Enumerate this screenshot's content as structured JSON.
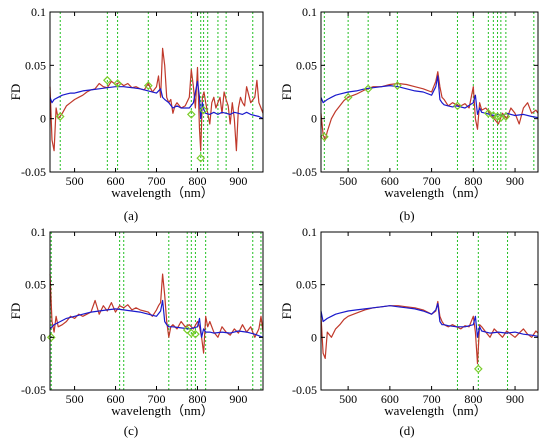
{
  "chart_data": [
    {
      "type": "line",
      "panel_label": "(a)",
      "xlabel": "wavelength（nm）",
      "ylabel": "FD",
      "xlim": [
        440,
        960
      ],
      "ylim": [
        -0.05,
        0.1
      ],
      "xticks": [
        "500",
        "600",
        "700",
        "800",
        "900"
      ],
      "yticks": [
        "-0.05",
        "0",
        "0.05",
        "0.1"
      ],
      "grid": false,
      "colors": {
        "red": "#c0392b",
        "blue": "#1a1acd",
        "green_line": "#22c022",
        "marker": "#7ccd2c"
      },
      "vlines": [
        465,
        580,
        605,
        680,
        785,
        808,
        815,
        825,
        850,
        870,
        935
      ],
      "markers": [
        [
          465,
          0.002
        ],
        [
          580,
          0.036
        ],
        [
          605,
          0.033
        ],
        [
          680,
          0.031
        ],
        [
          785,
          0.004
        ],
        [
          808,
          -0.037
        ],
        [
          815,
          0.008
        ]
      ],
      "series": [
        {
          "color": "red",
          "x": [
            440,
            445,
            450,
            455,
            460,
            470,
            480,
            490,
            500,
            510,
            520,
            530,
            540,
            550,
            560,
            570,
            580,
            590,
            600,
            610,
            620,
            630,
            640,
            650,
            660,
            670,
            680,
            690,
            700,
            705,
            710,
            715,
            720,
            725,
            730,
            735,
            740,
            745,
            750,
            760,
            770,
            780,
            785,
            790,
            795,
            800,
            805,
            808,
            812,
            816,
            820,
            825,
            830,
            835,
            840,
            845,
            850,
            855,
            860,
            865,
            870,
            875,
            880,
            885,
            890,
            895,
            900,
            905,
            910,
            915,
            920,
            930,
            940,
            945,
            950,
            955,
            960
          ],
          "y": [
            0.03,
            -0.02,
            -0.03,
            0.01,
            0.0,
            0.005,
            0.012,
            0.015,
            0.018,
            0.02,
            0.022,
            0.025,
            0.027,
            0.028,
            0.033,
            0.03,
            0.029,
            0.035,
            0.032,
            0.034,
            0.031,
            0.033,
            0.029,
            0.03,
            0.028,
            0.027,
            0.033,
            0.025,
            0.03,
            0.04,
            0.02,
            0.066,
            0.05,
            0.02,
            0.015,
            0.018,
            0.005,
            0.012,
            0.015,
            0.01,
            0.012,
            0.02,
            0.046,
            0.03,
            0.01,
            0.048,
            -0.01,
            -0.03,
            0.02,
            0.025,
            0.015,
            0.005,
            -0.005,
            0.015,
            0.02,
            0.01,
            0.015,
            0.02,
            0.005,
            0.025,
            0.018,
            0.012,
            -0.005,
            0.015,
            0.0,
            -0.03,
            0.01,
            0.02,
            0.015,
            0.012,
            0.03,
            0.015,
            0.02,
            0.036,
            0.015,
            0.01,
            0.005
          ]
        },
        {
          "color": "blue",
          "x": [
            440,
            445,
            450,
            460,
            470,
            480,
            490,
            500,
            510,
            520,
            540,
            560,
            580,
            600,
            620,
            640,
            660,
            680,
            700,
            710,
            715,
            720,
            730,
            740,
            750,
            760,
            780,
            790,
            800,
            805,
            808,
            812,
            816,
            820,
            830,
            840,
            850,
            860,
            870,
            880,
            890,
            900,
            910,
            920,
            930,
            940,
            950,
            960
          ],
          "y": [
            0.02,
            0.015,
            0.018,
            0.02,
            0.022,
            0.023,
            0.024,
            0.024,
            0.025,
            0.026,
            0.027,
            0.028,
            0.029,
            0.03,
            0.03,
            0.029,
            0.028,
            0.026,
            0.024,
            0.028,
            0.02,
            0.018,
            0.015,
            0.01,
            0.012,
            0.01,
            0.01,
            0.015,
            0.035,
            0.02,
            0.0,
            0.015,
            0.008,
            0.005,
            0.004,
            0.006,
            0.004,
            0.006,
            0.005,
            0.004,
            0.006,
            0.005,
            0.004,
            0.006,
            0.004,
            0.003,
            0.002,
            0.0
          ]
        }
      ]
    },
    {
      "type": "line",
      "panel_label": "(b)",
      "xlabel": "wavelength（nm）",
      "ylabel": "FD",
      "xlim": [
        435,
        955
      ],
      "ylim": [
        -0.05,
        0.1
      ],
      "xticks": [
        "500",
        "600",
        "700",
        "800",
        "900"
      ],
      "yticks": [
        "-0.05",
        "0",
        "0.05",
        "0.1"
      ],
      "grid": false,
      "colors": {
        "red": "#c0392b",
        "blue": "#1a1acd",
        "green_line": "#22c022",
        "marker": "#7ccd2c"
      },
      "vlines": [
        443,
        500,
        548,
        618,
        762,
        800,
        836,
        848,
        858,
        866,
        878,
        945
      ],
      "markers": [
        [
          443,
          -0.017
        ],
        [
          500,
          0.02
        ],
        [
          548,
          0.028
        ],
        [
          618,
          0.031
        ],
        [
          762,
          0.012
        ],
        [
          836,
          0.005
        ],
        [
          848,
          0.003
        ],
        [
          858,
          0.002
        ],
        [
          866,
          0.001
        ],
        [
          878,
          0.002
        ]
      ],
      "series": [
        {
          "color": "red",
          "x": [
            435,
            440,
            445,
            450,
            460,
            470,
            480,
            490,
            500,
            520,
            540,
            560,
            580,
            600,
            620,
            640,
            660,
            680,
            700,
            710,
            715,
            720,
            725,
            730,
            740,
            750,
            760,
            770,
            780,
            790,
            800,
            805,
            810,
            815,
            820,
            830,
            840,
            850,
            860,
            870,
            880,
            890,
            900,
            910,
            920,
            930,
            940,
            950,
            955
          ],
          "y": [
            0.005,
            -0.015,
            -0.02,
            -0.012,
            0.0,
            0.007,
            0.012,
            0.017,
            0.02,
            0.023,
            0.027,
            0.03,
            0.03,
            0.032,
            0.033,
            0.032,
            0.03,
            0.028,
            0.025,
            0.035,
            0.044,
            0.03,
            0.02,
            0.018,
            0.012,
            0.015,
            0.013,
            0.012,
            0.014,
            0.01,
            0.03,
            0.0,
            -0.01,
            0.015,
            0.008,
            0.01,
            0.005,
            0.0,
            -0.005,
            0.005,
            0.0,
            0.01,
            0.005,
            -0.005,
            0.01,
            0.015,
            0.005,
            0.008,
            0.005
          ]
        },
        {
          "color": "blue",
          "x": [
            435,
            440,
            450,
            460,
            470,
            480,
            500,
            520,
            540,
            560,
            580,
            600,
            620,
            640,
            660,
            680,
            700,
            710,
            715,
            720,
            725,
            730,
            740,
            750,
            760,
            780,
            800,
            805,
            810,
            815,
            820,
            830,
            840,
            850,
            860,
            870,
            880,
            890,
            900,
            920,
            940,
            955
          ],
          "y": [
            0.02,
            0.015,
            0.018,
            0.02,
            0.022,
            0.023,
            0.025,
            0.026,
            0.028,
            0.029,
            0.03,
            0.031,
            0.03,
            0.028,
            0.026,
            0.025,
            0.022,
            0.03,
            0.04,
            0.018,
            0.015,
            0.013,
            0.012,
            0.011,
            0.012,
            0.01,
            0.015,
            0.022,
            0.004,
            0.01,
            0.006,
            0.005,
            0.004,
            0.003,
            0.004,
            0.003,
            0.005,
            0.004,
            0.003,
            0.004,
            0.002,
            0.001
          ]
        }
      ]
    },
    {
      "type": "line",
      "panel_label": "(c)",
      "xlabel": "wavelength（nm）",
      "ylabel": "FD",
      "xlim": [
        440,
        960
      ],
      "ylim": [
        -0.05,
        0.1
      ],
      "xticks": [
        "500",
        "600",
        "700",
        "800",
        "900"
      ],
      "yticks": [
        "-0.05",
        "0",
        "0.05",
        "0.1"
      ],
      "grid": false,
      "colors": {
        "red": "#c0392b",
        "blue": "#1a1acd",
        "green_line": "#22c022",
        "marker": "#7ccd2c"
      },
      "vlines": [
        443,
        610,
        620,
        730,
        775,
        785,
        795,
        820,
        935,
        955
      ],
      "markers": [
        [
          443,
          0.0
        ],
        [
          775,
          0.007
        ],
        [
          785,
          0.004
        ],
        [
          795,
          0.003
        ]
      ],
      "series": [
        {
          "color": "red",
          "x": [
            440,
            445,
            450,
            455,
            460,
            470,
            480,
            490,
            500,
            510,
            520,
            530,
            540,
            550,
            560,
            570,
            580,
            590,
            600,
            610,
            620,
            630,
            640,
            650,
            660,
            670,
            680,
            690,
            700,
            705,
            710,
            715,
            720,
            725,
            730,
            735,
            740,
            750,
            760,
            770,
            780,
            790,
            800,
            805,
            810,
            815,
            820,
            825,
            830,
            840,
            850,
            860,
            870,
            880,
            890,
            900,
            910,
            920,
            930,
            940,
            950,
            955,
            960
          ],
          "y": [
            0.06,
            0.015,
            0.005,
            0.02,
            0.01,
            0.012,
            0.015,
            0.02,
            0.018,
            0.022,
            0.02,
            0.022,
            0.024,
            0.035,
            0.022,
            0.03,
            0.025,
            0.033,
            0.024,
            0.03,
            0.028,
            0.031,
            0.026,
            0.028,
            0.026,
            0.025,
            0.024,
            0.02,
            0.026,
            0.03,
            0.033,
            0.06,
            0.04,
            0.015,
            0.0,
            0.01,
            0.012,
            0.008,
            0.015,
            0.01,
            0.012,
            0.008,
            0.015,
            0.01,
            0.0,
            -0.015,
            0.02,
            0.01,
            0.015,
            0.005,
            0.0,
            0.01,
            0.005,
            0.002,
            0.008,
            0.004,
            0.012,
            0.005,
            0.01,
            0.0,
            0.008,
            0.02,
            0.005
          ]
        },
        {
          "color": "blue",
          "x": [
            440,
            445,
            450,
            460,
            470,
            480,
            500,
            520,
            540,
            560,
            580,
            600,
            620,
            640,
            660,
            680,
            700,
            710,
            715,
            720,
            725,
            730,
            740,
            760,
            780,
            800,
            805,
            810,
            815,
            820,
            830,
            840,
            860,
            880,
            900,
            920,
            940,
            960
          ],
          "y": [
            0.008,
            0.01,
            0.012,
            0.014,
            0.016,
            0.018,
            0.02,
            0.022,
            0.024,
            0.025,
            0.026,
            0.027,
            0.026,
            0.025,
            0.024,
            0.022,
            0.02,
            0.025,
            0.035,
            0.015,
            0.012,
            0.01,
            0.01,
            0.009,
            0.008,
            0.01,
            0.018,
            0.0,
            0.008,
            0.005,
            0.005,
            0.004,
            0.005,
            0.004,
            0.006,
            0.005,
            0.003,
            0.0
          ]
        }
      ]
    },
    {
      "type": "line",
      "panel_label": "(d)",
      "xlabel": "wavelength（nm）",
      "ylabel": "FD",
      "xlim": [
        435,
        955
      ],
      "ylim": [
        -0.05,
        0.1
      ],
      "xticks": [
        "500",
        "600",
        "700",
        "800",
        "900"
      ],
      "yticks": [
        "-0.05",
        "0",
        "0.05",
        "0.1"
      ],
      "grid": false,
      "colors": {
        "red": "#c0392b",
        "blue": "#1a1acd",
        "green_line": "#22c022",
        "marker": "#7ccd2c"
      },
      "vlines": [
        762,
        812,
        882
      ],
      "markers": [
        [
          812,
          -0.03
        ]
      ],
      "series": [
        {
          "color": "red",
          "x": [
            435,
            440,
            445,
            450,
            460,
            470,
            480,
            490,
            500,
            520,
            540,
            560,
            580,
            600,
            620,
            640,
            660,
            680,
            700,
            710,
            715,
            720,
            725,
            730,
            740,
            750,
            760,
            770,
            780,
            790,
            800,
            805,
            810,
            815,
            820,
            830,
            840,
            850,
            860,
            870,
            880,
            890,
            900,
            910,
            920,
            930,
            940,
            950,
            955
          ],
          "y": [
            0.02,
            -0.015,
            -0.02,
            0.005,
            0.0,
            0.008,
            0.012,
            0.017,
            0.02,
            0.023,
            0.026,
            0.028,
            0.029,
            0.03,
            0.03,
            0.029,
            0.028,
            0.026,
            0.022,
            0.025,
            0.034,
            0.02,
            0.015,
            0.012,
            0.01,
            0.012,
            0.01,
            0.008,
            0.011,
            0.01,
            0.02,
            0.005,
            -0.025,
            0.012,
            0.01,
            0.005,
            0.0,
            0.008,
            0.004,
            0.0,
            0.006,
            0.003,
            0.0,
            0.004,
            0.008,
            0.003,
            0.0,
            0.006,
            0.004
          ]
        },
        {
          "color": "blue",
          "x": [
            435,
            440,
            450,
            460,
            470,
            480,
            500,
            520,
            540,
            560,
            580,
            600,
            620,
            640,
            660,
            680,
            700,
            710,
            715,
            720,
            725,
            730,
            740,
            760,
            780,
            800,
            805,
            810,
            815,
            820,
            830,
            840,
            860,
            880,
            900,
            920,
            940,
            955
          ],
          "y": [
            0.025,
            0.015,
            0.018,
            0.02,
            0.022,
            0.023,
            0.025,
            0.026,
            0.027,
            0.028,
            0.029,
            0.03,
            0.029,
            0.028,
            0.027,
            0.025,
            0.022,
            0.026,
            0.032,
            0.015,
            0.012,
            0.012,
            0.011,
            0.01,
            0.01,
            0.012,
            0.02,
            0.0,
            0.01,
            0.006,
            0.005,
            0.004,
            0.005,
            0.004,
            0.005,
            0.003,
            0.002,
            0.001
          ]
        }
      ]
    }
  ]
}
